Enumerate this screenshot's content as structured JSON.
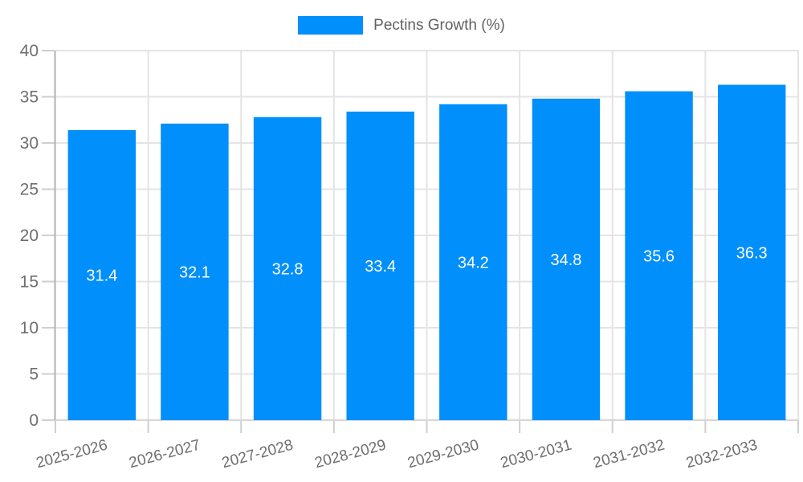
{
  "legend": {
    "label": "Pectins Growth (%)"
  },
  "chart_data": {
    "type": "bar",
    "title": "Pectins Growth (%)",
    "categories": [
      "2025-2026",
      "2026-2027",
      "2027-2028",
      "2028-2029",
      "2029-2030",
      "2030-2031",
      "2031-2032",
      "2032-2033"
    ],
    "series": [
      {
        "name": "Pectins Growth (%)",
        "values": [
          31.4,
          32.1,
          32.8,
          33.4,
          34.2,
          34.8,
          35.6,
          36.3
        ]
      }
    ],
    "value_labels": [
      "31.4",
      "32.1",
      "32.8",
      "33.4",
      "34.2",
      "34.8",
      "35.6",
      "36.3"
    ],
    "xlabel": "",
    "ylabel": "",
    "ylim": [
      0,
      40
    ],
    "yticks": [
      0,
      5,
      10,
      15,
      20,
      25,
      30,
      35,
      40
    ],
    "grid": true,
    "legend_position": "top",
    "x_label_rotation": -15,
    "colors": {
      "bar": "#008FFB",
      "bar_value_label": "#FFFFFF",
      "axis_text": "#6E6E6E",
      "legend_text": "#616161",
      "gridline": "#E4E4E4",
      "y_axis_line": "#B1B1B1",
      "x_axis_line": "#D6D6D6",
      "tick": "#CFCFCF",
      "background": "#FFFFFF"
    }
  }
}
